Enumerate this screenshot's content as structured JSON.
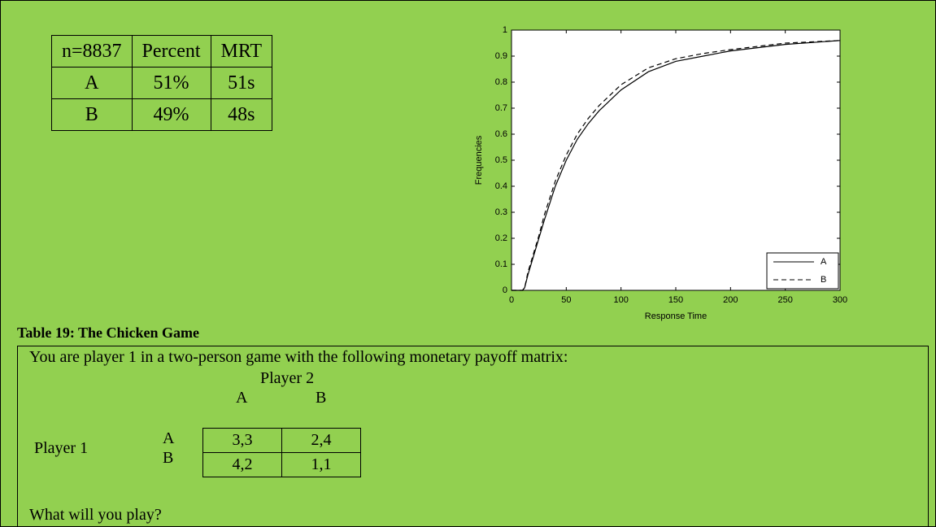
{
  "table": {
    "rows": [
      [
        "n=8837",
        "Percent",
        "MRT"
      ],
      [
        "A",
        "51%",
        "51s"
      ],
      [
        "B",
        "49%",
        "48s"
      ]
    ]
  },
  "chart_data": {
    "type": "line",
    "xlabel": "Response Time",
    "ylabel": "Frequencies",
    "x": [
      0,
      5,
      10,
      12,
      15,
      20,
      25,
      30,
      40,
      50,
      60,
      70,
      80,
      100,
      125,
      150,
      175,
      200,
      250,
      300
    ],
    "series": [
      {
        "name": "A",
        "color": "#000000",
        "dash": "solid",
        "values": [
          0,
          0,
          0,
          0.01,
          0.06,
          0.13,
          0.2,
          0.27,
          0.4,
          0.5,
          0.58,
          0.64,
          0.69,
          0.77,
          0.84,
          0.88,
          0.9,
          0.92,
          0.945,
          0.96
        ]
      },
      {
        "name": "B",
        "color": "#000000",
        "dash": "dashed",
        "values": [
          0,
          0,
          0,
          0.01,
          0.07,
          0.14,
          0.21,
          0.29,
          0.42,
          0.52,
          0.6,
          0.66,
          0.71,
          0.79,
          0.855,
          0.89,
          0.91,
          0.925,
          0.95,
          0.96
        ]
      }
    ],
    "xlim": [
      0,
      300
    ],
    "ylim": [
      0,
      1
    ],
    "xticks": [
      0,
      50,
      100,
      150,
      200,
      250,
      300
    ],
    "yticks": [
      0,
      0.1,
      0.2,
      0.3,
      0.4,
      0.5,
      0.6,
      0.7,
      0.8,
      0.9,
      1
    ],
    "legend": "lower right"
  },
  "caption": "Table 19: The Chicken Game",
  "game": {
    "intro": "You are player 1 in a two-person game with the following monetary payoff matrix:",
    "col_player": "Player 2",
    "col_labels": [
      "A",
      "B"
    ],
    "row_player": "Player 1",
    "row_labels": [
      "A",
      "B"
    ],
    "payoffs": [
      [
        "3,3",
        "2,4"
      ],
      [
        "4,2",
        "1,1"
      ]
    ],
    "question": "What will you play?"
  }
}
